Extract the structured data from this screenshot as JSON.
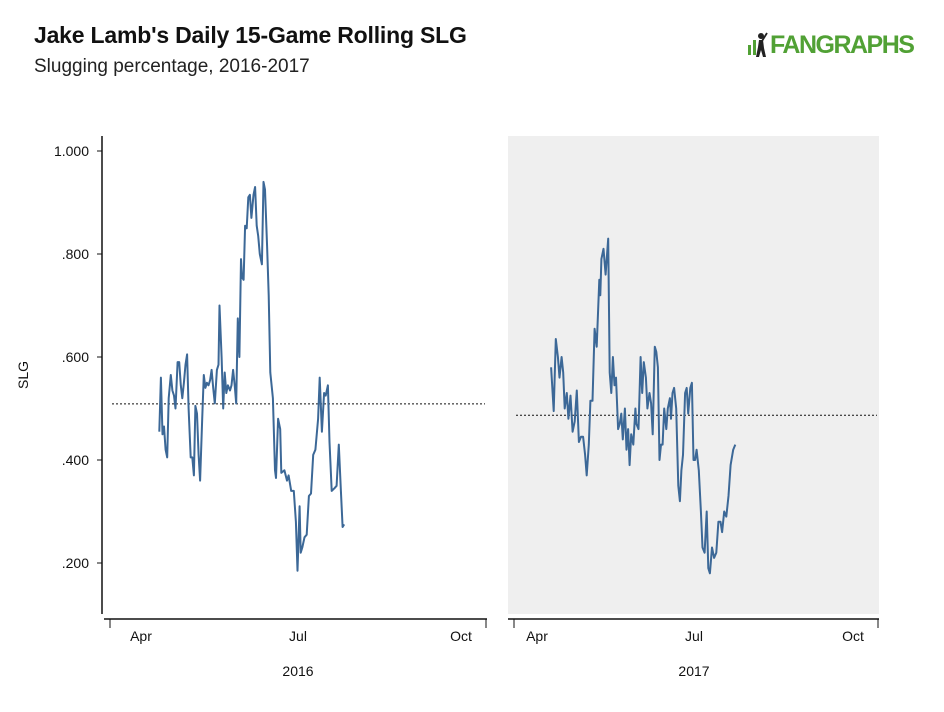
{
  "header": {
    "title": "Jake Lamb's Daily 15-Game Rolling SLG",
    "subtitle": "Slugging percentage, 2016-2017",
    "logo_text": "FANGRAPHS"
  },
  "colors": {
    "line": "#3c6897",
    "panel_2017_bg": "#efefef",
    "logo": "#51a135",
    "axis": "#111111"
  },
  "chart_data": {
    "type": "line",
    "ylabel": "SLG",
    "ylim": [
      0.1,
      1.02
    ],
    "yticks": [
      {
        "value": 1.0,
        "label": "1.000"
      },
      {
        "value": 0.8,
        "label": ".800"
      },
      {
        "value": 0.6,
        "label": ".600"
      },
      {
        "value": 0.4,
        "label": ".400"
      },
      {
        "value": 0.2,
        "label": ".200"
      }
    ],
    "xticks": [
      "Apr",
      "Jul",
      "Oct"
    ],
    "grid": false,
    "panels": [
      {
        "year": "2016",
        "background": "white",
        "reference_line": 0.509,
        "series": [
          {
            "values": [
              [
                4.35,
                0.455
              ],
              [
                4.38,
                0.56
              ],
              [
                4.41,
                0.45
              ],
              [
                4.44,
                0.465
              ],
              [
                4.47,
                0.42
              ],
              [
                4.5,
                0.405
              ],
              [
                4.53,
                0.52
              ],
              [
                4.57,
                0.565
              ],
              [
                4.6,
                0.535
              ],
              [
                4.63,
                0.525
              ],
              [
                4.66,
                0.5
              ],
              [
                4.7,
                0.59
              ],
              [
                4.73,
                0.59
              ],
              [
                4.76,
                0.545
              ],
              [
                4.79,
                0.52
              ],
              [
                4.82,
                0.55
              ],
              [
                4.85,
                0.585
              ],
              [
                4.88,
                0.605
              ],
              [
                4.91,
                0.5
              ],
              [
                4.95,
                0.405
              ],
              [
                4.98,
                0.405
              ],
              [
                5.01,
                0.37
              ],
              [
                5.04,
                0.505
              ],
              [
                5.07,
                0.49
              ],
              [
                5.1,
                0.41
              ],
              [
                5.13,
                0.36
              ],
              [
                5.17,
                0.48
              ],
              [
                5.2,
                0.565
              ],
              [
                5.23,
                0.54
              ],
              [
                5.26,
                0.55
              ],
              [
                5.29,
                0.545
              ],
              [
                5.32,
                0.555
              ],
              [
                5.35,
                0.575
              ],
              [
                5.38,
                0.54
              ],
              [
                5.41,
                0.51
              ],
              [
                5.45,
                0.575
              ],
              [
                5.48,
                0.585
              ],
              [
                5.5,
                0.7
              ],
              [
                5.54,
                0.6
              ],
              [
                5.57,
                0.5
              ],
              [
                5.6,
                0.57
              ],
              [
                5.63,
                0.53
              ],
              [
                5.66,
                0.545
              ],
              [
                5.7,
                0.535
              ],
              [
                5.73,
                0.545
              ],
              [
                5.76,
                0.575
              ],
              [
                5.79,
                0.545
              ],
              [
                5.82,
                0.51
              ],
              [
                5.85,
                0.675
              ],
              [
                5.88,
                0.6
              ],
              [
                5.91,
                0.79
              ],
              [
                5.93,
                0.755
              ],
              [
                5.96,
                0.75
              ],
              [
                5.99,
                0.855
              ],
              [
                6.02,
                0.85
              ],
              [
                6.05,
                0.91
              ],
              [
                6.08,
                0.915
              ],
              [
                6.11,
                0.87
              ],
              [
                6.15,
                0.915
              ],
              [
                6.18,
                0.93
              ],
              [
                6.21,
                0.855
              ],
              [
                6.24,
                0.835
              ],
              [
                6.27,
                0.8
              ],
              [
                6.31,
                0.78
              ],
              [
                6.34,
                0.94
              ],
              [
                6.37,
                0.925
              ],
              [
                6.41,
                0.815
              ],
              [
                6.44,
                0.72
              ],
              [
                6.47,
                0.57
              ],
              [
                6.52,
                0.52
              ],
              [
                6.56,
                0.38
              ],
              [
                6.58,
                0.365
              ],
              [
                6.62,
                0.48
              ],
              [
                6.66,
                0.46
              ],
              [
                6.68,
                0.375
              ],
              [
                6.74,
                0.38
              ],
              [
                6.79,
                0.36
              ],
              [
                6.82,
                0.37
              ],
              [
                6.87,
                0.34
              ],
              [
                6.92,
                0.34
              ],
              [
                6.96,
                0.28
              ],
              [
                6.99,
                0.185
              ],
              [
                7.03,
                0.31
              ],
              [
                7.05,
                0.22
              ],
              [
                7.08,
                0.23
              ],
              [
                7.12,
                0.25
              ],
              [
                7.16,
                0.255
              ],
              [
                7.2,
                0.33
              ],
              [
                7.24,
                0.335
              ],
              [
                7.28,
                0.41
              ],
              [
                7.32,
                0.42
              ],
              [
                7.37,
                0.48
              ],
              [
                7.4,
                0.56
              ],
              [
                7.44,
                0.455
              ],
              [
                7.48,
                0.53
              ],
              [
                7.51,
                0.525
              ],
              [
                7.55,
                0.545
              ],
              [
                7.58,
                0.435
              ],
              [
                7.62,
                0.34
              ],
              [
                7.67,
                0.345
              ],
              [
                7.71,
                0.35
              ],
              [
                7.75,
                0.43
              ],
              [
                7.79,
                0.34
              ],
              [
                7.82,
                0.27
              ],
              [
                7.85,
                0.275
              ]
            ]
          }
        ]
      },
      {
        "year": "2017",
        "background": "gray",
        "reference_line": 0.487,
        "series": [
          {
            "values": [
              [
                4.27,
                0.58
              ],
              [
                4.32,
                0.495
              ],
              [
                4.36,
                0.635
              ],
              [
                4.4,
                0.6
              ],
              [
                4.43,
                0.56
              ],
              [
                4.47,
                0.6
              ],
              [
                4.5,
                0.57
              ],
              [
                4.53,
                0.5
              ],
              [
                4.57,
                0.53
              ],
              [
                4.6,
                0.48
              ],
              [
                4.64,
                0.525
              ],
              [
                4.68,
                0.455
              ],
              [
                4.72,
                0.475
              ],
              [
                4.76,
                0.535
              ],
              [
                4.8,
                0.435
              ],
              [
                4.84,
                0.445
              ],
              [
                4.88,
                0.445
              ],
              [
                4.92,
                0.41
              ],
              [
                4.95,
                0.37
              ],
              [
                4.99,
                0.43
              ],
              [
                5.02,
                0.515
              ],
              [
                5.06,
                0.515
              ],
              [
                5.1,
                0.655
              ],
              [
                5.14,
                0.62
              ],
              [
                5.19,
                0.75
              ],
              [
                5.21,
                0.72
              ],
              [
                5.23,
                0.79
              ],
              [
                5.27,
                0.81
              ],
              [
                5.31,
                0.76
              ],
              [
                5.36,
                0.83
              ],
              [
                5.39,
                0.57
              ],
              [
                5.42,
                0.53
              ],
              [
                5.45,
                0.6
              ],
              [
                5.48,
                0.545
              ],
              [
                5.51,
                0.56
              ],
              [
                5.55,
                0.46
              ],
              [
                5.58,
                0.47
              ],
              [
                5.61,
                0.49
              ],
              [
                5.64,
                0.44
              ],
              [
                5.68,
                0.5
              ],
              [
                5.71,
                0.42
              ],
              [
                5.74,
                0.46
              ],
              [
                5.77,
                0.39
              ],
              [
                5.8,
                0.45
              ],
              [
                5.84,
                0.43
              ],
              [
                5.88,
                0.5
              ],
              [
                5.9,
                0.47
              ],
              [
                5.94,
                0.46
              ],
              [
                5.98,
                0.6
              ],
              [
                6.01,
                0.53
              ],
              [
                6.04,
                0.59
              ],
              [
                6.08,
                0.56
              ],
              [
                6.11,
                0.5
              ],
              [
                6.15,
                0.53
              ],
              [
                6.18,
                0.51
              ],
              [
                6.21,
                0.45
              ],
              [
                6.25,
                0.62
              ],
              [
                6.28,
                0.61
              ],
              [
                6.31,
                0.58
              ],
              [
                6.34,
                0.4
              ],
              [
                6.37,
                0.43
              ],
              [
                6.4,
                0.43
              ],
              [
                6.43,
                0.5
              ],
              [
                6.47,
                0.46
              ],
              [
                6.5,
                0.5
              ],
              [
                6.54,
                0.52
              ],
              [
                6.56,
                0.48
              ],
              [
                6.59,
                0.53
              ],
              [
                6.62,
                0.54
              ],
              [
                6.66,
                0.5
              ],
              [
                6.7,
                0.35
              ],
              [
                6.73,
                0.32
              ],
              [
                6.76,
                0.38
              ],
              [
                6.79,
                0.41
              ],
              [
                6.83,
                0.53
              ],
              [
                6.86,
                0.54
              ],
              [
                6.89,
                0.49
              ],
              [
                6.93,
                0.54
              ],
              [
                6.96,
                0.55
              ],
              [
                6.99,
                0.4
              ],
              [
                7.02,
                0.4
              ],
              [
                7.05,
                0.42
              ],
              [
                7.09,
                0.38
              ],
              [
                7.13,
                0.3
              ],
              [
                7.16,
                0.23
              ],
              [
                7.2,
                0.22
              ],
              [
                7.24,
                0.3
              ],
              [
                7.27,
                0.19
              ],
              [
                7.3,
                0.18
              ],
              [
                7.34,
                0.23
              ],
              [
                7.38,
                0.21
              ],
              [
                7.42,
                0.22
              ],
              [
                7.46,
                0.28
              ],
              [
                7.5,
                0.28
              ],
              [
                7.53,
                0.26
              ],
              [
                7.57,
                0.3
              ],
              [
                7.61,
                0.29
              ],
              [
                7.65,
                0.33
              ],
              [
                7.69,
                0.39
              ],
              [
                7.74,
                0.42
              ],
              [
                7.78,
                0.43
              ]
            ]
          }
        ]
      }
    ]
  }
}
